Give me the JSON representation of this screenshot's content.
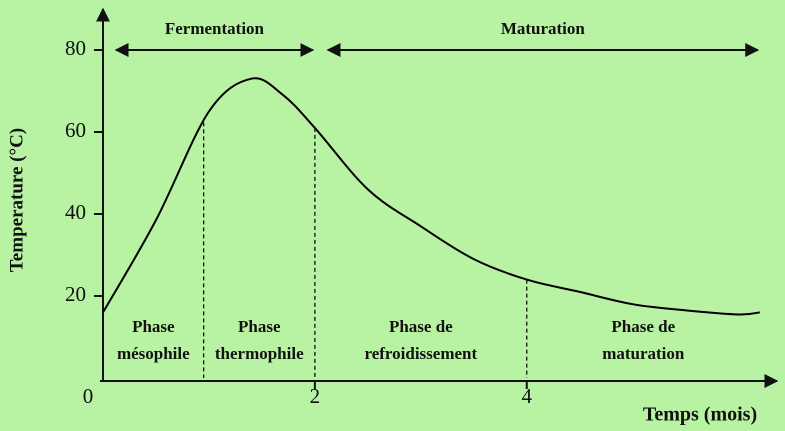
{
  "chart_data": {
    "type": "line",
    "x_label": "Temps (mois)",
    "y_label": "Temperature (°C)",
    "x": [
      0,
      0.5,
      1,
      1.4,
      1.7,
      2,
      2.5,
      3,
      3.5,
      4,
      4.5,
      5,
      5.5,
      6,
      6.2
    ],
    "series": [
      {
        "color": "#000000",
        "values": [
          16,
          38.5,
          65,
          73,
          69,
          61,
          46,
          37,
          29,
          24,
          21,
          18,
          16.5,
          15.5,
          16
        ]
      }
    ],
    "xlim": [
      0,
      6.4
    ],
    "ylim": [
      0,
      90
    ],
    "xticks": [
      0,
      2,
      4
    ],
    "yticks": [
      20,
      40,
      60,
      80
    ],
    "background": "#b7f3a2",
    "phase_boundaries": [
      0.95,
      2,
      4
    ],
    "phases": [
      {
        "lines": [
          "Phase",
          "mésophile"
        ]
      },
      {
        "lines": [
          "Phase",
          "thermophile"
        ]
      },
      {
        "lines": [
          "Phase de",
          "refroidissement"
        ]
      },
      {
        "lines": [
          "Phase de",
          "maturation"
        ]
      }
    ],
    "periods": [
      {
        "label": "Fermentation",
        "from": 0,
        "to": 2
      },
      {
        "label": "Maturation",
        "from": 2,
        "to": 6.2
      }
    ]
  }
}
